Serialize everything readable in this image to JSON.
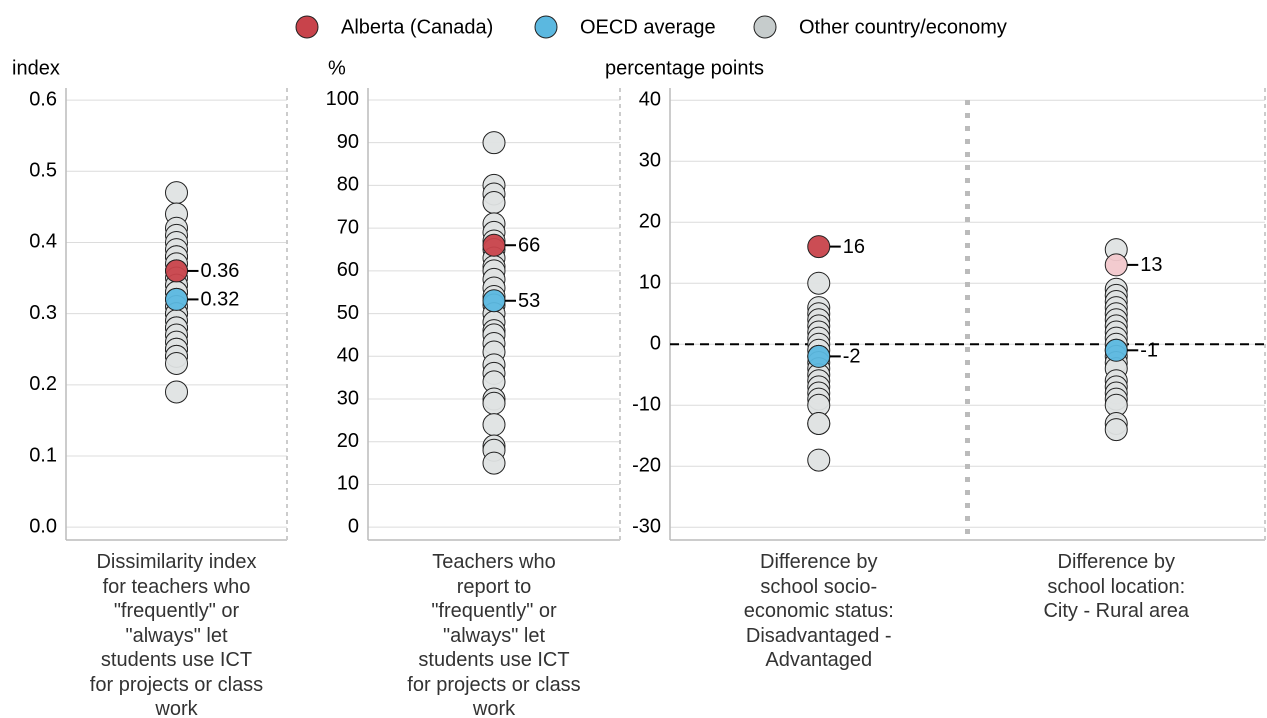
{
  "chart_data": [
    {
      "type": "strip",
      "ylabel": "index",
      "ylim": [
        -0.018,
        0.617
      ],
      "yticks": [
        {
          "value": 0,
          "label": "0.0"
        },
        0.1,
        0.2,
        0.3,
        0.4,
        0.5,
        0.6
      ],
      "categories": [
        "Dissimilarity index for teachers who \"frequently\" or \"always\" let students use ICT for projects or class work"
      ],
      "series": [
        {
          "name": "Alberta (Canada)",
          "color": "#c8434b",
          "values": [
            [
              0.36
            ]
          ],
          "labeled": true
        },
        {
          "name": "OECD average",
          "color": "#5bb8e0",
          "values": [
            [
              0.32
            ]
          ],
          "labeled": true
        },
        {
          "name": "Other country/economy",
          "color": "#dfe3e3",
          "values": [
            [
              0.47,
              0.44,
              0.42,
              0.41,
              0.4,
              0.39,
              0.38,
              0.38,
              0.37,
              0.36,
              0.35,
              0.34,
              0.33,
              0.33,
              0.32,
              0.31,
              0.3,
              0.3,
              0.29,
              0.28,
              0.28,
              0.27,
              0.26,
              0.25,
              0.25,
              0.24,
              0.24,
              0.23,
              0.19
            ]
          ]
        }
      ]
    },
    {
      "type": "strip",
      "ylabel": "%",
      "ylim": [
        -3,
        102.8
      ],
      "yticks": [
        0,
        10,
        20,
        30,
        40,
        50,
        60,
        70,
        80,
        90,
        100
      ],
      "categories": [
        "Teachers who report to \"frequently\" or \"always\" let students use ICT for projects or class work"
      ],
      "series": [
        {
          "name": "Alberta (Canada)",
          "color": "#c8434b",
          "values": [
            [
              66
            ]
          ],
          "labeled": true
        },
        {
          "name": "OECD average",
          "color": "#5bb8e0",
          "values": [
            [
              53
            ]
          ],
          "labeled": true
        },
        {
          "name": "Other country/economy",
          "color": "#dfe3e3",
          "values": [
            [
              90,
              80,
              78,
              76,
              71,
              69,
              67,
              65,
              63,
              61,
              60,
              58,
              56,
              54,
              52,
              50,
              48,
              46,
              45,
              43,
              41,
              38,
              36,
              34,
              30,
              29,
              24,
              19,
              18,
              15
            ]
          ]
        }
      ]
    },
    {
      "type": "strip",
      "ylabel": "percentage points",
      "ylim": [
        -32.1,
        42
      ],
      "hline": 0,
      "yticks": [
        -30,
        -20,
        -10,
        0,
        10,
        20,
        30,
        40
      ],
      "categories": [
        "Difference by school socio-economic status: Disadvantaged - Advantaged",
        "Difference by school location: City - Rural area"
      ],
      "series": [
        {
          "name": "Alberta (Canada)",
          "color": "#c8434b",
          "colors": [
            "#c8434b",
            "#f2c8cc"
          ],
          "values": [
            [
              16
            ],
            [
              13
            ]
          ],
          "labeled": true
        },
        {
          "name": "OECD average",
          "color": "#5bb8e0",
          "values": [
            [
              -2
            ],
            [
              -1
            ]
          ],
          "labeled": true
        },
        {
          "name": "Other country/economy",
          "color": "#dfe3e3",
          "values": [
            [
              10,
              6,
              5,
              4,
              3,
              2,
              1,
              0,
              -1,
              -2,
              -3,
              -4,
              -5,
              -6,
              -7,
              -8,
              -9,
              -10,
              -13,
              -13,
              -19
            ],
            [
              15.5,
              9,
              8,
              7,
              6,
              5,
              4,
              3,
              2,
              1,
              0,
              -1,
              -2,
              -3,
              -4,
              -6,
              -7,
              -8,
              -9,
              -10,
              -13,
              -14
            ]
          ]
        }
      ]
    }
  ]
}
